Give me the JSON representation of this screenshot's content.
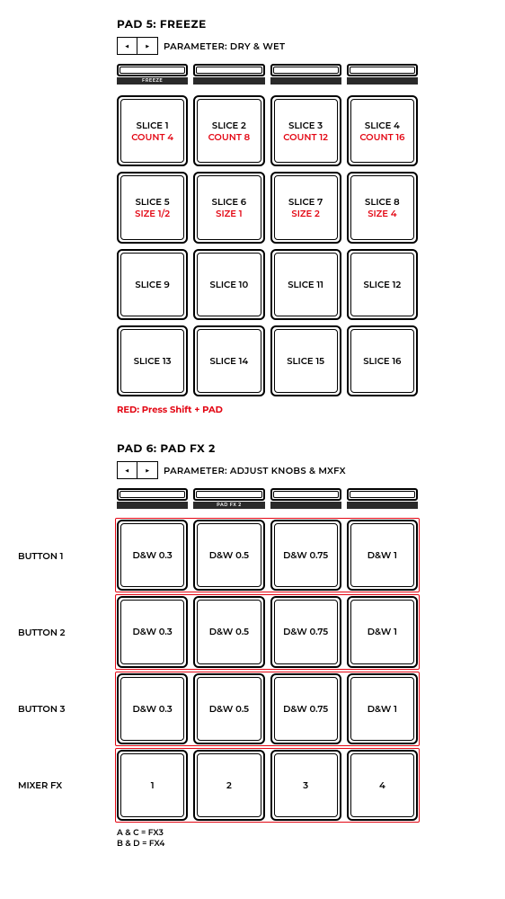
{
  "pad5": {
    "title": "PAD 5: FREEZE",
    "parameter_prefix": "PARAMETER: ",
    "parameter": "DRY & WET",
    "arrow_left": "◀",
    "arrow_right": "▶",
    "mode_labels": [
      "FREEZE",
      "",
      "",
      ""
    ],
    "pads": [
      {
        "line1": "SLICE 1",
        "line2": "COUNT 4"
      },
      {
        "line1": "SLICE 2",
        "line2": "COUNT 8"
      },
      {
        "line1": "SLICE 3",
        "line2": "COUNT 12"
      },
      {
        "line1": "SLICE 4",
        "line2": "COUNT 16"
      },
      {
        "line1": "SLICE 5",
        "line2": "SIZE 1/2"
      },
      {
        "line1": "SLICE 6",
        "line2": "SIZE 1"
      },
      {
        "line1": "SLICE 7",
        "line2": "SIZE 2"
      },
      {
        "line1": "SLICE 8",
        "line2": "SIZE 4"
      },
      {
        "line1": "SLICE 9",
        "line2": ""
      },
      {
        "line1": "SLICE 10",
        "line2": ""
      },
      {
        "line1": "SLICE 11",
        "line2": ""
      },
      {
        "line1": "SLICE 12",
        "line2": ""
      },
      {
        "line1": "SLICE 13",
        "line2": ""
      },
      {
        "line1": "SLICE 14",
        "line2": ""
      },
      {
        "line1": "SLICE 15",
        "line2": ""
      },
      {
        "line1": "SLICE 16",
        "line2": ""
      }
    ],
    "footnote": "RED: Press Shift + PAD"
  },
  "pad6": {
    "title": "PAD 6: PAD FX 2",
    "parameter_prefix": "PARAMETER: ",
    "parameter": "ADJUST KNOBS & MXFX",
    "arrow_left": "◀",
    "arrow_right": "▶",
    "mode_labels": [
      "",
      "PAD FX 2",
      "",
      ""
    ],
    "row_labels": [
      "BUTTON 1",
      "BUTTON 2",
      "BUTTON 3",
      "MIXER FX"
    ],
    "pads": [
      {
        "line1": "D&W 0.3"
      },
      {
        "line1": "D&W 0.5"
      },
      {
        "line1": "D&W 0.75"
      },
      {
        "line1": "D&W 1"
      },
      {
        "line1": "D&W 0.3"
      },
      {
        "line1": "D&W 0.5"
      },
      {
        "line1": "D&W 0.75"
      },
      {
        "line1": "D&W 1"
      },
      {
        "line1": "D&W 0.3"
      },
      {
        "line1": "D&W 0.5"
      },
      {
        "line1": "D&W 0.75"
      },
      {
        "line1": "D&W 1"
      },
      {
        "line1": "1"
      },
      {
        "line1": "2"
      },
      {
        "line1": "3"
      },
      {
        "line1": "4"
      }
    ],
    "footer1": "A & C = FX3",
    "footer2": "B & D = FX4"
  },
  "colors": {
    "red": "#e30613",
    "black": "#000000",
    "modebar": "#2a2a2a",
    "bg": "#ffffff"
  }
}
